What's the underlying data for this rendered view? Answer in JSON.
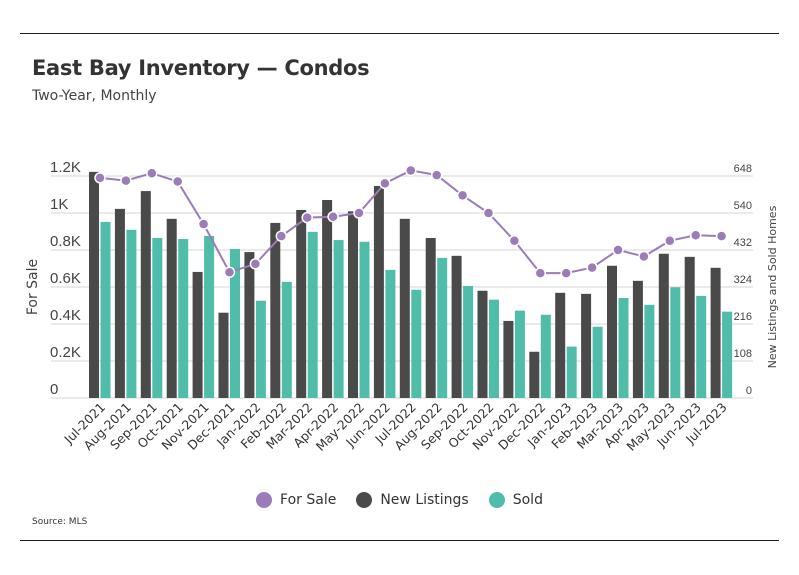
{
  "chart_data": {
    "type": "bar+line",
    "title": "East Bay Inventory — Condos",
    "subtitle": "Two-Year, Monthly",
    "source": "Source: MLS",
    "categories": [
      "Jul-2021",
      "Aug-2021",
      "Sep-2021",
      "Oct-2021",
      "Nov-2021",
      "Dec-2021",
      "Jan-2022",
      "Feb-2022",
      "Mar-2022",
      "Apr-2022",
      "May-2022",
      "Jun-2022",
      "Jul-2022",
      "Aug-2022",
      "Sep-2022",
      "Oct-2022",
      "Nov-2022",
      "Dec-2022",
      "Jan-2023",
      "Feb-2023",
      "Mar-2023",
      "Apr-2023",
      "May-2023",
      "Jun-2023",
      "Jul-2023"
    ],
    "ylabel_left": "For Sale",
    "ylabel_right": "New Listings and Sold Homes",
    "yticks_left": [
      "0",
      "0.2K",
      "0.4K",
      "0.6K",
      "0.8K",
      "1K",
      "1.2K"
    ],
    "yticks_right": [
      "0",
      "108",
      "216",
      "324",
      "432",
      "540",
      "648"
    ],
    "ylim_left": [
      0,
      1200
    ],
    "ylim_right": [
      0,
      648
    ],
    "grid": true,
    "legend_position": "bottom",
    "series": [
      {
        "name": "For Sale",
        "type": "line",
        "axis": "left",
        "color": "#9b7bb8",
        "values": [
          1190,
          1175,
          1215,
          1170,
          940,
          680,
          725,
          875,
          975,
          980,
          1000,
          1160,
          1230,
          1205,
          1095,
          1000,
          850,
          675,
          675,
          705,
          800,
          765,
          850,
          880,
          875
        ]
      },
      {
        "name": "New Listings",
        "type": "bar",
        "axis": "right",
        "color": "#4a4a4a",
        "values": [
          660,
          552,
          604,
          523,
          368,
          249,
          426,
          511,
          549,
          578,
          545,
          619,
          523,
          467,
          415,
          313,
          225,
          135,
          307,
          304,
          386,
          342,
          421,
          412,
          380
        ]
      },
      {
        "name": "Sold",
        "type": "bar",
        "axis": "right",
        "color": "#4fbdaa",
        "values": [
          514,
          491,
          467,
          464,
          473,
          435,
          284,
          339,
          485,
          461,
          456,
          374,
          316,
          409,
          327,
          287,
          255,
          243,
          150,
          208,
          292,
          272,
          323,
          298,
          252
        ]
      }
    ]
  }
}
